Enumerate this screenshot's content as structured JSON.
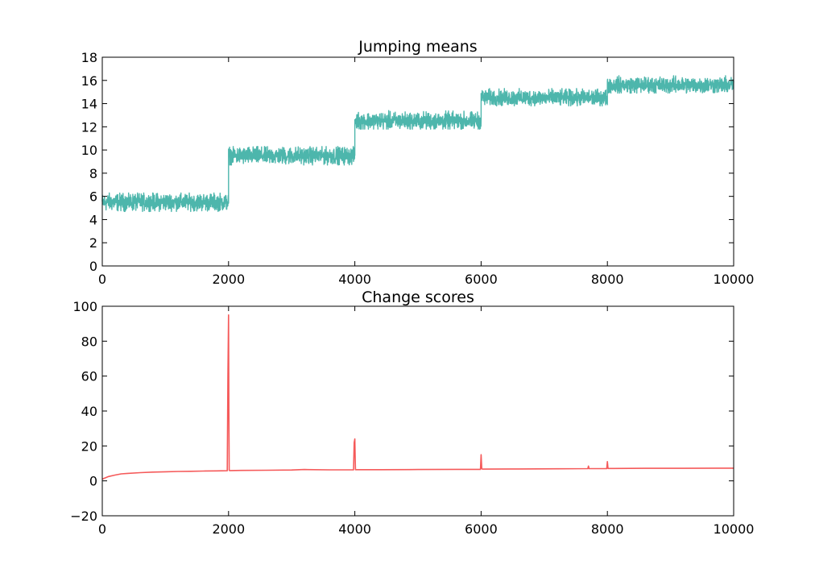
{
  "chart_data": [
    {
      "type": "line",
      "title": "Jumping means",
      "xlabel": "",
      "ylabel": "",
      "xlim": [
        0,
        10000
      ],
      "ylim": [
        0,
        18
      ],
      "xticks": [
        0,
        2000,
        4000,
        6000,
        8000,
        10000
      ],
      "yticks": [
        0,
        2,
        4,
        6,
        8,
        10,
        12,
        14,
        16,
        18
      ],
      "x_tick_labels": [
        "0",
        "2000",
        "4000",
        "6000",
        "8000",
        "10000"
      ],
      "y_tick_labels": [
        "0",
        "2",
        "4",
        "6",
        "8",
        "10",
        "12",
        "14",
        "16",
        "18"
      ],
      "grid": false,
      "color": "#4db6ac",
      "series": [
        {
          "segments": [
            {
              "x_start": 0,
              "x_end": 2000,
              "mean": 5.5,
              "band": [
                4.7,
                6.3
              ]
            },
            {
              "x_start": 2000,
              "x_end": 4000,
              "mean": 9.5,
              "band": [
                8.7,
                10.3
              ]
            },
            {
              "x_start": 4000,
              "x_end": 6000,
              "mean": 12.5,
              "band": [
                11.8,
                13.4
              ]
            },
            {
              "x_start": 6000,
              "x_end": 8000,
              "mean": 14.5,
              "band": [
                13.8,
                15.3
              ]
            },
            {
              "x_start": 8000,
              "x_end": 10000,
              "mean": 15.6,
              "band": [
                14.9,
                16.4
              ]
            }
          ]
        }
      ]
    },
    {
      "type": "line",
      "title": "Change scores",
      "xlabel": "",
      "ylabel": "",
      "xlim": [
        0,
        10000
      ],
      "ylim": [
        -20,
        100
      ],
      "xticks": [
        0,
        2000,
        4000,
        6000,
        8000,
        10000
      ],
      "yticks": [
        -20,
        0,
        20,
        40,
        60,
        80,
        100
      ],
      "x_tick_labels": [
        "0",
        "2000",
        "4000",
        "6000",
        "8000",
        "10000"
      ],
      "y_tick_labels": [
        "−20",
        "0",
        "20",
        "40",
        "60",
        "80",
        "100"
      ],
      "grid": false,
      "color": "#f55a5a",
      "series": [
        {
          "x": [
            0,
            100,
            200,
            300,
            400,
            600,
            800,
            1000,
            1200,
            1400,
            1600,
            1800,
            1980,
            1990,
            2000,
            2005,
            2010,
            2020,
            2200,
            2600,
            3000,
            3200,
            3600,
            3980,
            3990,
            4000,
            4005,
            4010,
            4020,
            4400,
            5000,
            5600,
            5990,
            6000,
            6010,
            6020,
            6600,
            7200,
            7690,
            7700,
            7710,
            7900,
            7990,
            8000,
            8010,
            8020,
            8600,
            9200,
            9800,
            10000
          ],
          "y": [
            1,
            2.5,
            3.3,
            4,
            4.3,
            4.7,
            5,
            5.2,
            5.4,
            5.5,
            5.6,
            5.7,
            5.8,
            60,
            95,
            40,
            6,
            5.9,
            6,
            6.1,
            6.2,
            6.5,
            6.3,
            6.3,
            22,
            24,
            14,
            6.4,
            6.4,
            6.4,
            6.5,
            6.6,
            6.6,
            15,
            7,
            6.7,
            6.8,
            6.9,
            7,
            8.5,
            7,
            7,
            7,
            11,
            7.1,
            7.1,
            7.2,
            7.2,
            7.3,
            7.3
          ]
        }
      ]
    }
  ]
}
